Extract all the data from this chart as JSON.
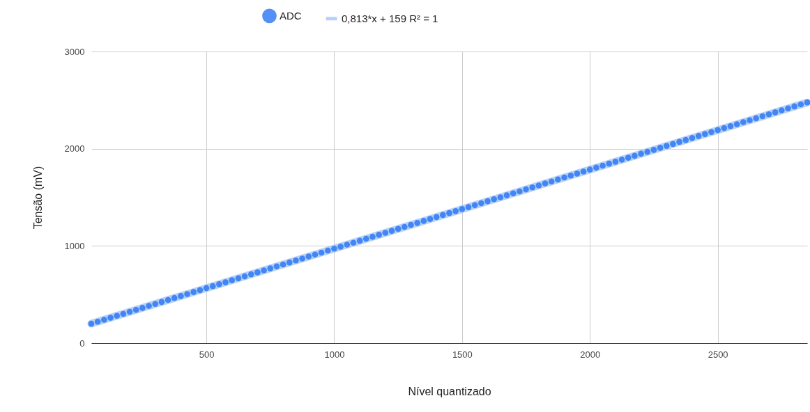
{
  "chart_data": {
    "type": "scatter",
    "xlabel": "Nível quantizado",
    "ylabel": "Tensão (mV)",
    "xlim": [
      50,
      2850
    ],
    "xticks": [
      500,
      1000,
      1500,
      2000,
      2500
    ],
    "ylim": [
      0,
      3000
    ],
    "yticks": [
      0,
      1000,
      2000,
      3000
    ],
    "grid": true,
    "legend": "top",
    "x": [
      50,
      75,
      100,
      125,
      150,
      175,
      200,
      225,
      250,
      275,
      300,
      325,
      350,
      375,
      400,
      425,
      450,
      475,
      500,
      525,
      550,
      575,
      600,
      625,
      650,
      675,
      700,
      725,
      750,
      775,
      800,
      825,
      850,
      875,
      900,
      925,
      950,
      975,
      1000,
      1025,
      1050,
      1075,
      1100,
      1125,
      1150,
      1175,
      1200,
      1225,
      1250,
      1275,
      1300,
      1325,
      1350,
      1375,
      1400,
      1425,
      1450,
      1475,
      1500,
      1525,
      1550,
      1575,
      1600,
      1625,
      1650,
      1675,
      1700,
      1725,
      1750,
      1775,
      1800,
      1825,
      1850,
      1875,
      1900,
      1925,
      1950,
      1975,
      2000,
      2025,
      2050,
      2075,
      2100,
      2125,
      2150,
      2175,
      2200,
      2225,
      2250,
      2275,
      2300,
      2325,
      2350,
      2375,
      2400,
      2425,
      2450,
      2475,
      2500,
      2525,
      2550,
      2575,
      2600,
      2625,
      2650,
      2675,
      2700,
      2725,
      2750,
      2775,
      2800,
      2825,
      2850
    ],
    "series": [
      {
        "name": "ADC",
        "color": "#4285f4",
        "marker": "circle",
        "values": [
          200,
          220,
          240,
          261,
          281,
          301,
          322,
          342,
          362,
          383,
          403,
          423,
          444,
          464,
          484,
          505,
          525,
          545,
          566,
          586,
          606,
          626,
          647,
          667,
          687,
          708,
          728,
          748,
          769,
          789,
          809,
          830,
          850,
          870,
          891,
          911,
          931,
          952,
          972,
          992,
          1013,
          1033,
          1053,
          1074,
          1094,
          1114,
          1135,
          1155,
          1175,
          1196,
          1216,
          1236,
          1257,
          1277,
          1297,
          1318,
          1338,
          1358,
          1379,
          1399,
          1419,
          1439,
          1460,
          1480,
          1500,
          1521,
          1541,
          1561,
          1582,
          1602,
          1622,
          1643,
          1663,
          1683,
          1704,
          1724,
          1744,
          1765,
          1785,
          1805,
          1826,
          1846,
          1866,
          1887,
          1907,
          1927,
          1948,
          1968,
          1988,
          2009,
          2029,
          2049,
          2070,
          2090,
          2110,
          2131,
          2151,
          2171,
          2192,
          2212,
          2232,
          2252,
          2273,
          2293,
          2313,
          2334,
          2354,
          2374,
          2395,
          2415,
          2435,
          2456,
          2476
        ]
      },
      {
        "name": "0,813*x + 159 R² = 1",
        "type": "line",
        "color": "#aecbfa",
        "x": [
          50,
          2850
        ],
        "values": [
          200,
          2476
        ]
      }
    ]
  }
}
